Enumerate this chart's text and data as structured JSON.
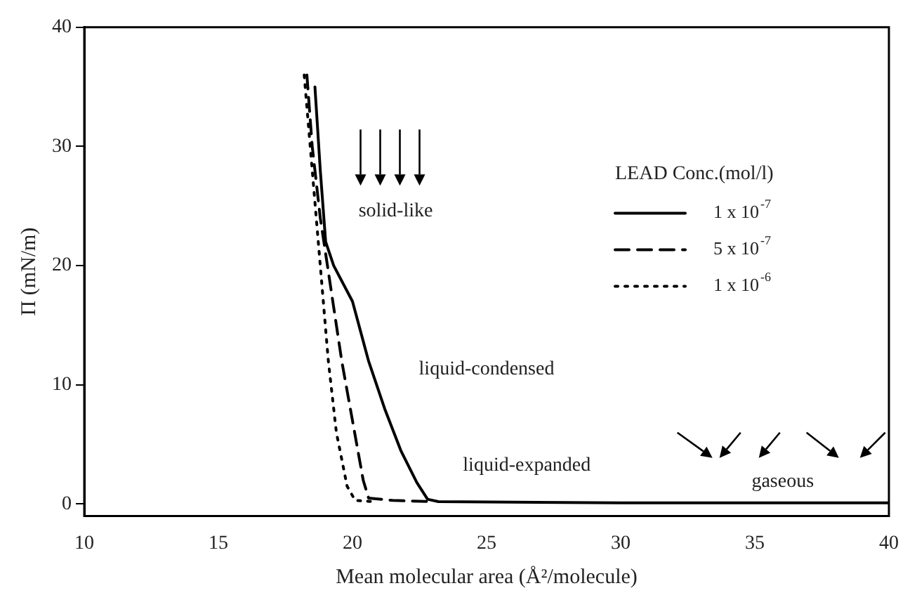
{
  "chart_data": {
    "type": "line",
    "xlabel": "Mean molecular area (Å²/molecule)",
    "ylabel": "Π (mN/m)",
    "legend_title": "LEAD Conc.(mol/l)",
    "legend": "right",
    "marker": "none",
    "grid": false,
    "xlim": [
      10,
      40
    ],
    "xticks": [
      10,
      15,
      20,
      25,
      30,
      35,
      40
    ],
    "ylim": [
      -1,
      40
    ],
    "yticks": [
      0,
      10,
      20,
      30,
      40
    ],
    "series": [
      {
        "name": "1 x 10$^{-7}$",
        "color": "#000000",
        "line_style": "solid",
        "x": [
          18.6,
          18.8,
          19.0,
          19.3,
          20.0,
          20.6,
          21.2,
          21.8,
          22.4,
          22.8,
          23.2,
          30,
          40
        ],
        "values": [
          35,
          28,
          22,
          20,
          17,
          12,
          8,
          4.5,
          1.8,
          0.4,
          0.2,
          0.1,
          0.1
        ]
      },
      {
        "name": "5 x 10$^{-7}$",
        "color": "#000000",
        "line_style": "dashed",
        "x": [
          18.3,
          18.5,
          18.8,
          19.2,
          19.6,
          20.0,
          20.4,
          20.6,
          21.5,
          23
        ],
        "values": [
          36,
          30,
          24,
          18,
          12,
          7,
          2,
          0.5,
          0.3,
          0.2
        ]
      },
      {
        "name": "1 x 10$^{-6}$",
        "color": "#000000",
        "line_style": "dotted",
        "x": [
          18.2,
          18.5,
          18.8,
          19.1,
          19.4,
          19.8,
          20.1,
          20.8
        ],
        "values": [
          36,
          28,
          20,
          12,
          6,
          1.5,
          0.3,
          0.2
        ]
      }
    ],
    "annotations": [
      "solid-like",
      "liquid-condensed",
      "liquid-expanded",
      "gaseous"
    ]
  }
}
